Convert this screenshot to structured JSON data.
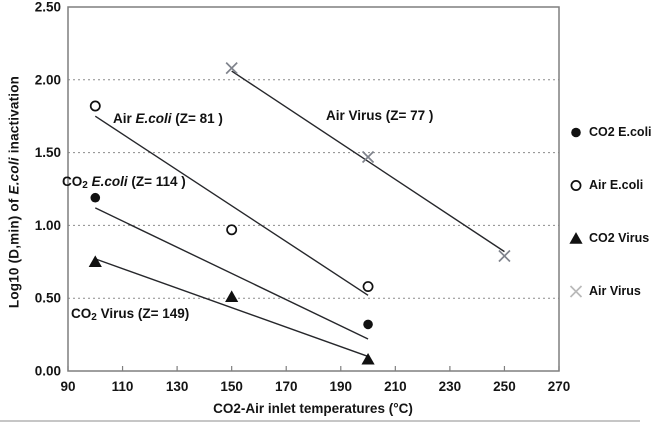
{
  "figure": {
    "background": "#ffffff",
    "border_color": "#7f7f7f",
    "gridline_color": "#8c8c8c",
    "text_color": "#141414",
    "trendline_color": "#26272b"
  },
  "chart_data": {
    "type": "scatter",
    "title": "",
    "xlabel": "CO2-Air inlet temperatures (°C)",
    "ylabel": "Log10 (D,min) of E.coli inactivation",
    "ylabel_segments": [
      {
        "t": "Log10 (D,min) of ",
        "s": "b"
      },
      {
        "t": "E.coli",
        "s": "bi"
      },
      {
        "t": " inactivation",
        "s": "b"
      }
    ],
    "xlim": [
      90,
      270
    ],
    "ylim": [
      0,
      2.5
    ],
    "grid": "horizontal-dashed",
    "legend_position": "right-outside",
    "x_ticks": [
      {
        "v": 90,
        "label": "90"
      },
      {
        "v": 110,
        "label": "110"
      },
      {
        "v": 130,
        "label": "130"
      },
      {
        "v": 150,
        "label": "150"
      },
      {
        "v": 170,
        "label": "170"
      },
      {
        "v": 190,
        "label": "190"
      },
      {
        "v": 210,
        "label": "210"
      },
      {
        "v": 230,
        "label": "230"
      },
      {
        "v": 250,
        "label": "250"
      },
      {
        "v": 270,
        "label": "270"
      }
    ],
    "y_ticks": [
      {
        "v": 0,
        "label": "0.00"
      },
      {
        "v": 0.5,
        "label": "0.50"
      },
      {
        "v": 1,
        "label": "1.00"
      },
      {
        "v": 1.5,
        "label": "1.50"
      },
      {
        "v": 2,
        "label": "2.00"
      },
      {
        "v": 2.5,
        "label": "2.50"
      }
    ],
    "gridlines_y": [
      0.5,
      1,
      1.5,
      2
    ],
    "series": [
      {
        "name": "CO2 E.coli",
        "marker": "filled-circle",
        "color": "#111111",
        "z": 114,
        "points": [
          [
            100,
            1.19
          ],
          [
            200,
            0.32
          ]
        ],
        "trendline": [
          [
            100,
            1.12
          ],
          [
            200,
            0.22
          ]
        ]
      },
      {
        "name": "Air E.coli",
        "marker": "open-circle",
        "color": "#111111",
        "z": 81,
        "points": [
          [
            100,
            1.82
          ],
          [
            150,
            0.97
          ],
          [
            200,
            0.58
          ]
        ],
        "trendline": [
          [
            100,
            1.75
          ],
          [
            200,
            0.52
          ]
        ]
      },
      {
        "name": "CO2 Virus",
        "marker": "filled-triangle",
        "color": "#111111",
        "z": 149,
        "points": [
          [
            100,
            0.75
          ],
          [
            150,
            0.51
          ],
          [
            200,
            0.08
          ]
        ],
        "trendline": [
          [
            100,
            0.77
          ],
          [
            200,
            0.1
          ]
        ]
      },
      {
        "name": "Air Virus",
        "marker": "x-cross",
        "color": "#7f838c",
        "z": 77,
        "points": [
          [
            150,
            2.08
          ],
          [
            200,
            1.47
          ],
          [
            250,
            0.79
          ]
        ],
        "trendline": [
          [
            150,
            2.06
          ],
          [
            250,
            0.82
          ]
        ]
      }
    ],
    "annotations": [
      {
        "name": "air-ecoli-label",
        "x": 113,
        "y": 111,
        "text": "Air E.coli (Z= 81 )",
        "segments": [
          {
            "t": "Air ",
            "s": "b"
          },
          {
            "t": "E.coli",
            "s": "bi"
          },
          {
            "t": " (Z= 81 )",
            "s": "b"
          }
        ]
      },
      {
        "name": "air-virus-label",
        "x": 326,
        "y": 108,
        "text": "Air Virus (Z= 77 )",
        "segments": [
          {
            "t": "Air Virus (Z= 77 )",
            "s": "b"
          }
        ]
      },
      {
        "name": "co2-ecoli-label",
        "x": 62,
        "y": 174,
        "text": "CO2 E.coli (Z= 114 )",
        "segments": [
          {
            "t": "CO",
            "s": "b"
          },
          {
            "t": "2",
            "s": "sub"
          },
          {
            "t": " ",
            "s": "b"
          },
          {
            "t": "E.coli",
            "s": "bi"
          },
          {
            "t": " (Z= 114 )",
            "s": "b"
          }
        ]
      },
      {
        "name": "co2-virus-label",
        "x": 71,
        "y": 306,
        "text": "CO2 Virus (Z= 149)",
        "segments": [
          {
            "t": "CO",
            "s": "b"
          },
          {
            "t": "2",
            "s": "sub"
          },
          {
            "t": " Virus (Z= 149)",
            "s": "b"
          }
        ]
      }
    ],
    "legend": [
      {
        "label": "CO2 E.coli",
        "marker": "filled-circle",
        "color": "#111111",
        "y": 133
      },
      {
        "label": "Air E.coli",
        "marker": "open-circle",
        "color": "#111111",
        "y": 186
      },
      {
        "label": "CO2 Virus",
        "marker": "filled-triangle",
        "color": "#111111",
        "y": 239
      },
      {
        "label": "Air Virus",
        "marker": "x-cross",
        "color": "#b9b9b9",
        "y": 292
      }
    ]
  }
}
